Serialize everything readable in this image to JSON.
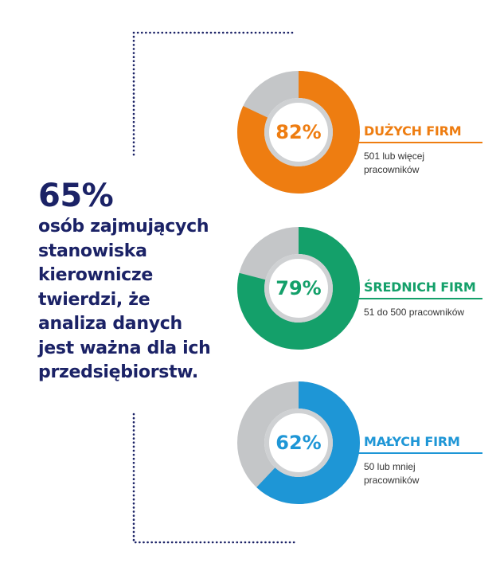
{
  "headline": {
    "percent": "65%",
    "text": "osób zajmujących\nstanowiska\nkierownicze\ntwierdzi, że\nanaliza danych\njest ważna dla ich\nprzedsiębiorstw."
  },
  "colors": {
    "navy": "#1b2266",
    "gray": "#c4c6c8",
    "orange": "#ee7d11",
    "green": "#14a06a",
    "blue": "#1e96d6"
  },
  "chart_data": {
    "type": "pie",
    "variant": "donut",
    "series": [
      {
        "label": "82%",
        "value": 82,
        "category": "DUŻYCH FIRM",
        "description": "501 lub więcej\npracowników",
        "color": "#ee7d11"
      },
      {
        "label": "79%",
        "value": 79,
        "category": "ŚREDNICH FIRM",
        "description": "51 do 500 pracowników",
        "color": "#14a06a"
      },
      {
        "label": "62%",
        "value": 62,
        "category": "MAŁYCH FIRM",
        "description": "50 lub mniej\npracowników",
        "color": "#1e96d6"
      }
    ],
    "remainder_color": "#c4c6c8"
  }
}
